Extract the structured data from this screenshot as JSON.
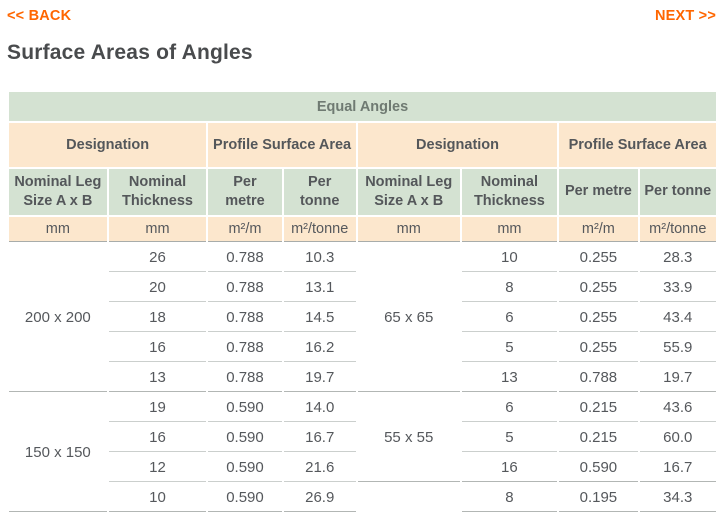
{
  "nav": {
    "back_label": "<< BACK",
    "next_label": "NEXT >>"
  },
  "page": {
    "title": "Surface Areas of Angles"
  },
  "colors": {
    "accent_orange": "#ff6600",
    "header_green": "#d4e2d2",
    "header_peach": "#fce7cd",
    "title_text": "#494b4d",
    "body_text": "#55585c"
  },
  "table": {
    "banner": "Equal Angles",
    "group_headers": {
      "designation_left": "Designation",
      "profile_left": "Profile Surface Area",
      "designation_right": "Designation",
      "profile_right": "Profile Surface Area"
    },
    "column_headers": {
      "leg_size_left": "Nominal Leg Size A x B",
      "thickness_left": "Nominal Thickness",
      "per_metre_left": "Per metre",
      "per_tonne_left": "Per tonne",
      "leg_size_right": "Nominal Leg Size A x B",
      "thickness_right": "Nominal Thickness",
      "per_metre_right": "Per metre",
      "per_tonne_right": "Per tonne"
    },
    "units": {
      "mm_left_1": "mm",
      "mm_left_2": "mm",
      "m2m_left": "m²/m",
      "m2tonne_left": "m²/tonne",
      "mm_right_1": "mm",
      "mm_right_2": "mm",
      "m2m_right": "m²/m",
      "m2tonne_right": "m²/tonne"
    },
    "left_groups": [
      {
        "size": "200 x 200",
        "rows": [
          [
            "26",
            "0.788",
            "10.3"
          ],
          [
            "20",
            "0.788",
            "13.1"
          ],
          [
            "18",
            "0.788",
            "14.5"
          ],
          [
            "16",
            "0.788",
            "16.2"
          ],
          [
            "13",
            "0.788",
            "19.7"
          ]
        ]
      },
      {
        "size": "150 x 150",
        "rows": [
          [
            "19",
            "0.590",
            "14.0"
          ],
          [
            "16",
            "0.590",
            "16.7"
          ],
          [
            "12",
            "0.590",
            "21.6"
          ],
          [
            "10",
            "0.590",
            "26.9"
          ]
        ]
      }
    ],
    "right_groups": [
      {
        "size": "65 x 65",
        "rows": [
          [
            "10",
            "0.255",
            "28.3"
          ],
          [
            "8",
            "0.255",
            "33.9"
          ],
          [
            "6",
            "0.255",
            "43.4"
          ],
          [
            "5",
            "0.255",
            "55.9"
          ],
          [
            "13",
            "0.788",
            "19.7"
          ]
        ]
      },
      {
        "size": "55 x 55",
        "rows": [
          [
            "6",
            "0.215",
            "43.6"
          ],
          [
            "5",
            "0.215",
            "60.0"
          ],
          [
            "16",
            "0.590",
            "16.7"
          ]
        ]
      },
      {
        "size": "",
        "rows": [
          [
            "8",
            "0.195",
            "34.3"
          ]
        ]
      }
    ]
  }
}
